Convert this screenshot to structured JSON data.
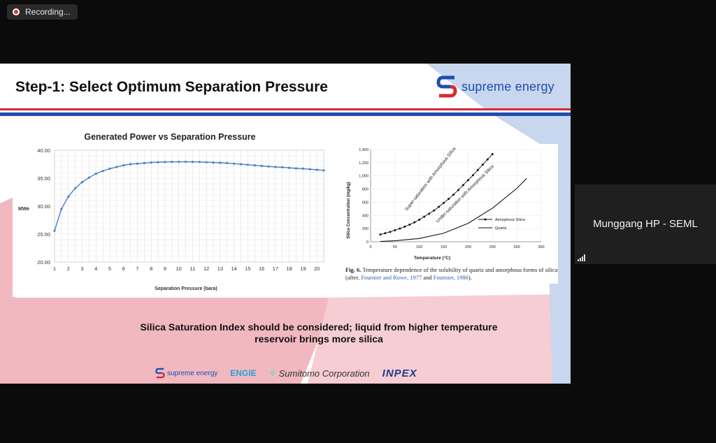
{
  "recording": {
    "label": "Recording..."
  },
  "slide": {
    "title": "Step-1: Select Optimum Separation Pressure",
    "brand": "supreme energy",
    "note_line1": "Silica Saturation Index should be considered; liquid from higher temperature",
    "note_line2": "reservoir brings more silica",
    "partners": {
      "brand": "supreme energy",
      "engie": "ENGIE",
      "sumitomo": "Sumitomo Corporation",
      "inpex": "INPEX"
    },
    "caption": {
      "fig": "Fig. 6.",
      "text": "Temperature dependence of the solubility of quartz and amorphous forms of silica (after,",
      "ref1": "Fournier and Rowe, 1977",
      "and": "and",
      "ref2": "Fournier, 1986",
      "end": ")."
    }
  },
  "participant": {
    "name": "Munggang HP - SEML"
  },
  "colors": {
    "accent_red": "#d62b36",
    "accent_blue": "#1d4fb0",
    "series": "#4a7fc4"
  },
  "chart_data": [
    {
      "type": "line",
      "title": "Generated Power vs Separation Pressure",
      "xlabel": "Separation Pressure (bara)",
      "ylabel": "MWe",
      "xlim": [
        1,
        20.5
      ],
      "ylim": [
        20,
        40
      ],
      "xticks": [
        1,
        2,
        3,
        4,
        5,
        6,
        7,
        8,
        9,
        10,
        11,
        12,
        13,
        14,
        15,
        16,
        17,
        18,
        19,
        20
      ],
      "yticks": [
        "20.00",
        "25.00",
        "30.00",
        "35.00",
        "40.00"
      ],
      "grid": true,
      "series": [
        {
          "x": [
            1.0,
            1.5,
            2.0,
            2.5,
            3.0,
            3.5,
            4.0,
            4.5,
            5.0,
            5.5,
            6.0,
            6.5,
            7.0,
            7.5,
            8.0,
            8.5,
            9.0,
            9.5,
            10.0,
            10.5,
            11.0,
            11.5,
            12.0,
            12.5,
            13.0,
            13.5,
            14.0,
            14.5,
            15.0,
            15.5,
            16.0,
            16.5,
            17.0,
            17.5,
            18.0,
            18.5,
            19.0,
            19.5,
            20.0,
            20.5
          ],
          "y": [
            25.6,
            29.5,
            31.7,
            33.2,
            34.3,
            35.1,
            35.8,
            36.3,
            36.7,
            37.0,
            37.3,
            37.5,
            37.6,
            37.7,
            37.8,
            37.85,
            37.9,
            37.92,
            37.93,
            37.93,
            37.92,
            37.9,
            37.85,
            37.8,
            37.75,
            37.7,
            37.6,
            37.5,
            37.4,
            37.3,
            37.2,
            37.1,
            37.0,
            36.95,
            36.85,
            36.75,
            36.7,
            36.6,
            36.5,
            36.4
          ]
        }
      ]
    },
    {
      "type": "line",
      "xlabel": "Temperature (°C)",
      "ylabel": "Silica Concentration (mg/kg)",
      "xlim": [
        0,
        350
      ],
      "ylim": [
        0,
        1400
      ],
      "xticks": [
        0,
        50,
        100,
        150,
        200,
        250,
        300,
        350
      ],
      "yticks": [
        "0",
        "200",
        "400",
        "600",
        "800",
        "1,000",
        "1,200",
        "1,400"
      ],
      "legend": "bottom-right",
      "annotations": [
        "Super-saturation with Amorphous Silica",
        "Under-saturation with Amorphous Silica"
      ],
      "series": [
        {
          "name": "Amorphous Silica",
          "x": [
            20,
            30,
            40,
            50,
            60,
            70,
            80,
            90,
            100,
            110,
            120,
            130,
            140,
            150,
            160,
            170,
            180,
            190,
            200,
            210,
            220,
            230,
            240,
            250
          ],
          "y": [
            110,
            130,
            150,
            175,
            200,
            230,
            260,
            295,
            335,
            380,
            425,
            475,
            530,
            590,
            650,
            715,
            785,
            860,
            935,
            1010,
            1090,
            1170,
            1250,
            1330
          ]
        },
        {
          "name": "Quartz",
          "x": [
            20,
            50,
            100,
            150,
            200,
            250,
            300,
            320
          ],
          "y": [
            5,
            15,
            50,
            130,
            280,
            510,
            810,
            960
          ]
        }
      ]
    }
  ]
}
